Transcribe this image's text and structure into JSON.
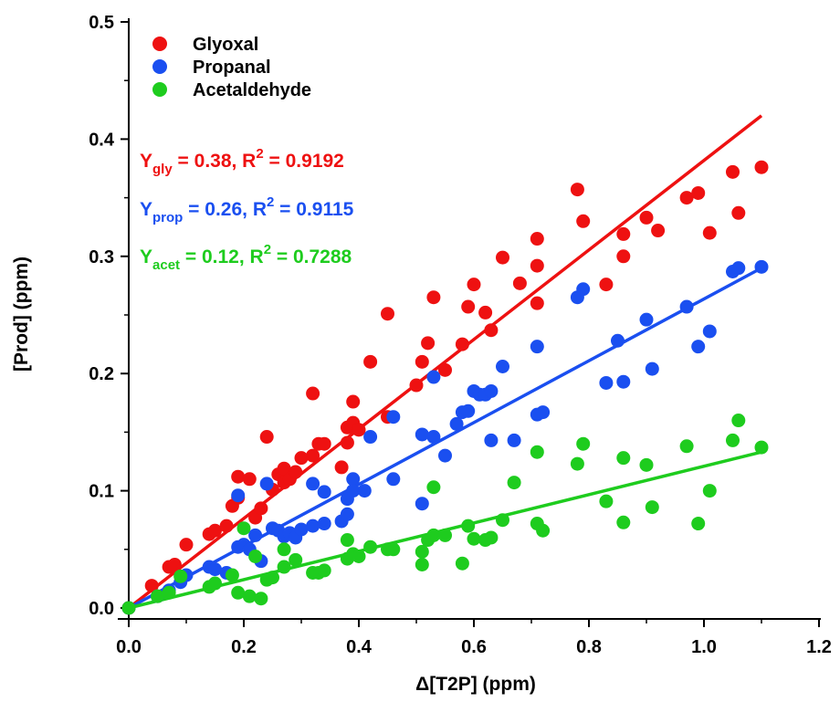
{
  "chart_data": {
    "type": "scatter",
    "xlabel": "Δ[T2P] (ppm)",
    "ylabel": "[Prod] (ppm)",
    "xlim": [
      0,
      1.2
    ],
    "ylim": [
      0,
      0.5
    ],
    "xticks": [
      "0.0",
      "0.2",
      "0.4",
      "0.6",
      "0.8",
      "1.0",
      "1.2"
    ],
    "yticks": [
      "0.0",
      "0.1",
      "0.2",
      "0.3",
      "0.4",
      "0.5"
    ],
    "legend_position": "top-left",
    "grid": false,
    "series": [
      {
        "name": "Glyoxal",
        "color": "#ee1111",
        "fit": {
          "label_main": "Y",
          "label_sub": "gly",
          "text": " = 0.38, R",
          "sup": "2",
          "text2": " = 0.9192",
          "line": [
            [
              0,
              0
            ],
            [
              1.1,
              0.42
            ]
          ]
        },
        "points": [
          [
            0.0,
            0.0
          ],
          [
            0.04,
            0.019
          ],
          [
            0.07,
            0.035
          ],
          [
            0.08,
            0.037
          ],
          [
            0.1,
            0.054
          ],
          [
            0.14,
            0.063
          ],
          [
            0.15,
            0.066
          ],
          [
            0.17,
            0.07
          ],
          [
            0.18,
            0.087
          ],
          [
            0.19,
            0.094
          ],
          [
            0.19,
            0.112
          ],
          [
            0.21,
            0.11
          ],
          [
            0.22,
            0.077
          ],
          [
            0.23,
            0.085
          ],
          [
            0.24,
            0.146
          ],
          [
            0.25,
            0.101
          ],
          [
            0.26,
            0.114
          ],
          [
            0.27,
            0.107
          ],
          [
            0.27,
            0.119
          ],
          [
            0.28,
            0.11
          ],
          [
            0.29,
            0.116
          ],
          [
            0.3,
            0.128
          ],
          [
            0.32,
            0.183
          ],
          [
            0.32,
            0.13
          ],
          [
            0.33,
            0.14
          ],
          [
            0.34,
            0.14
          ],
          [
            0.37,
            0.12
          ],
          [
            0.38,
            0.141
          ],
          [
            0.38,
            0.154
          ],
          [
            0.39,
            0.158
          ],
          [
            0.39,
            0.176
          ],
          [
            0.4,
            0.152
          ],
          [
            0.42,
            0.21
          ],
          [
            0.45,
            0.251
          ],
          [
            0.45,
            0.163
          ],
          [
            0.5,
            0.19
          ],
          [
            0.51,
            0.21
          ],
          [
            0.52,
            0.226
          ],
          [
            0.53,
            0.265
          ],
          [
            0.55,
            0.203
          ],
          [
            0.58,
            0.225
          ],
          [
            0.59,
            0.257
          ],
          [
            0.6,
            0.276
          ],
          [
            0.62,
            0.252
          ],
          [
            0.63,
            0.237
          ],
          [
            0.65,
            0.299
          ],
          [
            0.68,
            0.277
          ],
          [
            0.71,
            0.315
          ],
          [
            0.71,
            0.292
          ],
          [
            0.71,
            0.26
          ],
          [
            0.78,
            0.357
          ],
          [
            0.79,
            0.33
          ],
          [
            0.83,
            0.276
          ],
          [
            0.86,
            0.319
          ],
          [
            0.86,
            0.3
          ],
          [
            0.9,
            0.333
          ],
          [
            0.92,
            0.322
          ],
          [
            0.97,
            0.35
          ],
          [
            0.99,
            0.354
          ],
          [
            1.01,
            0.32
          ],
          [
            1.05,
            0.372
          ],
          [
            1.06,
            0.337
          ],
          [
            1.1,
            0.376
          ]
        ]
      },
      {
        "name": "Propanal",
        "color": "#1a4ff0",
        "fit": {
          "label_main": "Y",
          "label_sub": "prop",
          "text": " = 0.26, R",
          "sup": "2",
          "text2": " = 0.9115",
          "line": [
            [
              0,
              0
            ],
            [
              1.1,
              0.29
            ]
          ]
        },
        "points": [
          [
            0.0,
            0.0
          ],
          [
            0.05,
            0.01
          ],
          [
            0.07,
            0.015
          ],
          [
            0.09,
            0.022
          ],
          [
            0.1,
            0.028
          ],
          [
            0.14,
            0.035
          ],
          [
            0.15,
            0.033
          ],
          [
            0.17,
            0.03
          ],
          [
            0.19,
            0.052
          ],
          [
            0.19,
            0.096
          ],
          [
            0.2,
            0.054
          ],
          [
            0.21,
            0.05
          ],
          [
            0.22,
            0.062
          ],
          [
            0.23,
            0.04
          ],
          [
            0.24,
            0.106
          ],
          [
            0.25,
            0.068
          ],
          [
            0.26,
            0.066
          ],
          [
            0.27,
            0.061
          ],
          [
            0.28,
            0.064
          ],
          [
            0.29,
            0.06
          ],
          [
            0.3,
            0.067
          ],
          [
            0.32,
            0.07
          ],
          [
            0.32,
            0.106
          ],
          [
            0.34,
            0.072
          ],
          [
            0.34,
            0.099
          ],
          [
            0.37,
            0.074
          ],
          [
            0.38,
            0.093
          ],
          [
            0.38,
            0.08
          ],
          [
            0.39,
            0.11
          ],
          [
            0.39,
            0.1
          ],
          [
            0.41,
            0.1
          ],
          [
            0.42,
            0.146
          ],
          [
            0.46,
            0.163
          ],
          [
            0.46,
            0.11
          ],
          [
            0.51,
            0.148
          ],
          [
            0.51,
            0.089
          ],
          [
            0.53,
            0.146
          ],
          [
            0.53,
            0.197
          ],
          [
            0.55,
            0.13
          ],
          [
            0.57,
            0.157
          ],
          [
            0.58,
            0.167
          ],
          [
            0.59,
            0.168
          ],
          [
            0.6,
            0.185
          ],
          [
            0.61,
            0.182
          ],
          [
            0.62,
            0.182
          ],
          [
            0.63,
            0.185
          ],
          [
            0.63,
            0.143
          ],
          [
            0.65,
            0.206
          ],
          [
            0.67,
            0.143
          ],
          [
            0.71,
            0.165
          ],
          [
            0.71,
            0.223
          ],
          [
            0.72,
            0.167
          ],
          [
            0.78,
            0.265
          ],
          [
            0.79,
            0.272
          ],
          [
            0.83,
            0.192
          ],
          [
            0.85,
            0.228
          ],
          [
            0.86,
            0.193
          ],
          [
            0.9,
            0.246
          ],
          [
            0.91,
            0.204
          ],
          [
            0.97,
            0.257
          ],
          [
            0.99,
            0.223
          ],
          [
            1.01,
            0.236
          ],
          [
            1.05,
            0.287
          ],
          [
            1.06,
            0.29
          ],
          [
            1.1,
            0.291
          ]
        ]
      },
      {
        "name": "Acetaldehyde",
        "color": "#1ecc1e",
        "fit": {
          "label_main": "Y",
          "label_sub": "acet",
          "text": " = 0.12, R",
          "sup": "2",
          "text2": " = 0.7288",
          "line": [
            [
              0,
              0
            ],
            [
              1.1,
              0.133
            ]
          ]
        },
        "points": [
          [
            0.0,
            0.0
          ],
          [
            0.05,
            0.01
          ],
          [
            0.07,
            0.013
          ],
          [
            0.09,
            0.027
          ],
          [
            0.14,
            0.018
          ],
          [
            0.15,
            0.021
          ],
          [
            0.18,
            0.028
          ],
          [
            0.19,
            0.013
          ],
          [
            0.2,
            0.068
          ],
          [
            0.21,
            0.01
          ],
          [
            0.22,
            0.044
          ],
          [
            0.23,
            0.008
          ],
          [
            0.24,
            0.024
          ],
          [
            0.25,
            0.026
          ],
          [
            0.27,
            0.035
          ],
          [
            0.27,
            0.05
          ],
          [
            0.29,
            0.041
          ],
          [
            0.32,
            0.03
          ],
          [
            0.33,
            0.03
          ],
          [
            0.34,
            0.032
          ],
          [
            0.38,
            0.042
          ],
          [
            0.38,
            0.058
          ],
          [
            0.39,
            0.046
          ],
          [
            0.4,
            0.044
          ],
          [
            0.42,
            0.052
          ],
          [
            0.45,
            0.05
          ],
          [
            0.46,
            0.05
          ],
          [
            0.51,
            0.048
          ],
          [
            0.51,
            0.037
          ],
          [
            0.52,
            0.058
          ],
          [
            0.53,
            0.062
          ],
          [
            0.53,
            0.103
          ],
          [
            0.55,
            0.062
          ],
          [
            0.58,
            0.038
          ],
          [
            0.59,
            0.07
          ],
          [
            0.6,
            0.059
          ],
          [
            0.62,
            0.058
          ],
          [
            0.63,
            0.06
          ],
          [
            0.65,
            0.075
          ],
          [
            0.67,
            0.107
          ],
          [
            0.71,
            0.133
          ],
          [
            0.71,
            0.072
          ],
          [
            0.72,
            0.066
          ],
          [
            0.78,
            0.123
          ],
          [
            0.79,
            0.14
          ],
          [
            0.83,
            0.091
          ],
          [
            0.86,
            0.128
          ],
          [
            0.86,
            0.073
          ],
          [
            0.9,
            0.122
          ],
          [
            0.91,
            0.086
          ],
          [
            0.97,
            0.138
          ],
          [
            0.99,
            0.072
          ],
          [
            1.01,
            0.1
          ],
          [
            1.05,
            0.143
          ],
          [
            1.06,
            0.16
          ],
          [
            1.1,
            0.137
          ]
        ]
      }
    ]
  }
}
